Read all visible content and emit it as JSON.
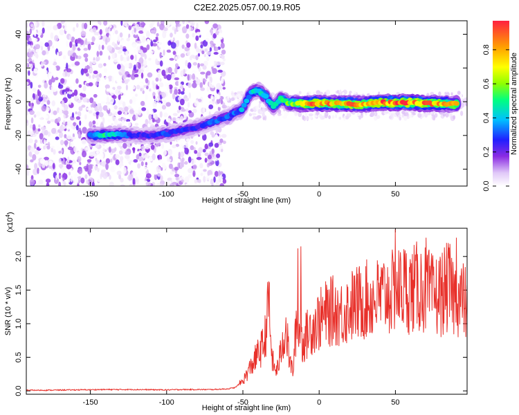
{
  "title": "C2E2.2025.057.00.19.R05",
  "chart_data": [
    {
      "type": "heatmap",
      "title": "C2E2.2025.057.00.19.R05",
      "xlabel": "Height of straight line (km)",
      "ylabel": "Frequency (Hz)",
      "xlim": [
        -192,
        97
      ],
      "ylim": [
        -50,
        48
      ],
      "xticks": [
        -150,
        -100,
        -50,
        0,
        50
      ],
      "yticks": [
        -40,
        -20,
        0,
        20,
        40
      ],
      "colorbar": {
        "label": "Normalized spectral amplitude",
        "range": [
          0,
          0.97
        ],
        "ticks": [
          "0.0",
          "0.2",
          "0.4",
          "0.6",
          "0.8"
        ],
        "colors": [
          "#ffffff",
          "#d8b6f5",
          "#8a2be2",
          "#2020ff",
          "#00c0ff",
          "#00ff80",
          "#90ff00",
          "#ffff00",
          "#ffa000",
          "#ff2040"
        ]
      },
      "ridge": [
        {
          "x": -150,
          "y": -20,
          "amp": 0.4
        },
        {
          "x": -140,
          "y": -19.5,
          "amp": 0.5
        },
        {
          "x": -130,
          "y": -19.5,
          "amp": 0.4
        },
        {
          "x": -120,
          "y": -20,
          "amp": 0.3
        },
        {
          "x": -110,
          "y": -20,
          "amp": 0.3
        },
        {
          "x": -100,
          "y": -19,
          "amp": 0.35
        },
        {
          "x": -90,
          "y": -17,
          "amp": 0.3
        },
        {
          "x": -80,
          "y": -15,
          "amp": 0.3
        },
        {
          "x": -70,
          "y": -12,
          "amp": 0.35
        },
        {
          "x": -60,
          "y": -9,
          "amp": 0.35
        },
        {
          "x": -50,
          "y": -4,
          "amp": 0.4
        },
        {
          "x": -45,
          "y": 5,
          "amp": 0.45
        },
        {
          "x": -40,
          "y": 7,
          "amp": 0.5
        },
        {
          "x": -35,
          "y": 3,
          "amp": 0.5
        },
        {
          "x": -30,
          "y": -3,
          "amp": 0.45
        },
        {
          "x": -25,
          "y": 2,
          "amp": 0.5
        },
        {
          "x": -20,
          "y": -1,
          "amp": 0.6
        },
        {
          "x": -10,
          "y": -1,
          "amp": 0.8
        },
        {
          "x": 0,
          "y": -1,
          "amp": 0.85
        },
        {
          "x": 10,
          "y": -1,
          "amp": 0.8
        },
        {
          "x": 20,
          "y": -1.5,
          "amp": 0.85
        },
        {
          "x": 30,
          "y": -1.5,
          "amp": 0.8
        },
        {
          "x": 40,
          "y": -0.5,
          "amp": 0.85
        },
        {
          "x": 50,
          "y": -0.5,
          "amp": 0.9
        },
        {
          "x": 60,
          "y": -0.5,
          "amp": 0.9
        },
        {
          "x": 70,
          "y": -1,
          "amp": 0.85
        },
        {
          "x": 80,
          "y": -1,
          "amp": 0.8
        },
        {
          "x": 90,
          "y": -1.5,
          "amp": 0.75
        }
      ]
    },
    {
      "type": "line",
      "xlabel": "Height of straight line (km)",
      "ylabel": "SNR (10 * v/v)",
      "yscale_label": "(x10",
      "yscale_exp": "4",
      "xlim": [
        -192,
        97
      ],
      "ylim": [
        -0.05,
        2.42
      ],
      "xticks": [
        -150,
        -100,
        -50,
        0,
        50
      ],
      "yticks": [
        "0.0",
        "0.5",
        "1.0",
        "1.5",
        "2.0"
      ],
      "ytick_values": [
        0,
        0.5,
        1.0,
        1.5,
        2.0
      ],
      "line_color": "#e8302a",
      "series": [
        {
          "name": "SNR",
          "x": [
            -192,
            -180,
            -160,
            -140,
            -120,
            -100,
            -90,
            -80,
            -70,
            -60,
            -55,
            -50,
            -45,
            -40,
            -36,
            -33,
            -31,
            -29,
            -27,
            -25,
            -22,
            -19,
            -17,
            -15,
            -13,
            -11,
            -9,
            -5,
            0,
            5,
            10,
            15,
            20,
            25,
            30,
            35,
            40,
            45,
            50,
            55,
            60,
            65,
            70,
            75,
            80,
            85,
            90,
            95,
            97
          ],
          "y": [
            0.01,
            0.01,
            0.015,
            0.02,
            0.02,
            0.015,
            0.02,
            0.02,
            0.02,
            0.03,
            0.05,
            0.15,
            0.35,
            0.55,
            0.7,
            1.3,
            0.5,
            0.3,
            0.35,
            0.6,
            0.95,
            0.4,
            0.3,
            1.0,
            0.95,
            0.7,
            0.8,
            0.95,
            1.05,
            1.15,
            1.2,
            1.15,
            1.25,
            1.3,
            1.35,
            1.35,
            1.4,
            1.45,
            1.45,
            1.55,
            1.5,
            1.55,
            1.5,
            1.4,
            1.45,
            1.55,
            1.35,
            1.35,
            1.2
          ]
        }
      ],
      "spikes": [
        {
          "x": -33,
          "y": 1.62
        },
        {
          "x": -14,
          "y": 2.12
        },
        {
          "x": -12,
          "y": 2.15
        },
        {
          "x": 50,
          "y": 2.4
        },
        {
          "x": 70,
          "y": 2.28
        },
        {
          "x": 90,
          "y": 2.28
        }
      ]
    }
  ]
}
